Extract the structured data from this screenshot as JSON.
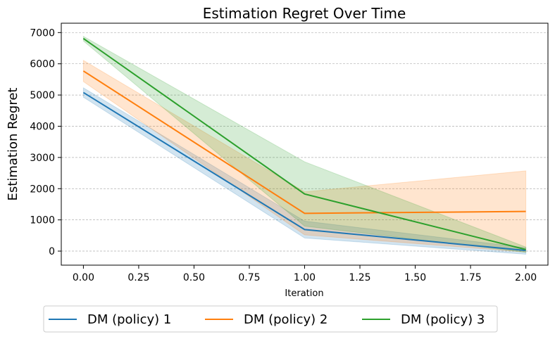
{
  "chart_data": {
    "type": "line",
    "title": "Estimation Regret Over Time",
    "xlabel": "Iteration",
    "ylabel": "Estimation Regret",
    "x": [
      0,
      1,
      2
    ],
    "xlim": [
      -0.1,
      2.1
    ],
    "ylim": [
      -450,
      7300
    ],
    "xticks": [
      0.0,
      0.25,
      0.5,
      0.75,
      1.0,
      1.25,
      1.5,
      1.75,
      2.0
    ],
    "xtick_labels": [
      "0.00",
      "0.25",
      "0.50",
      "0.75",
      "1.00",
      "1.25",
      "1.50",
      "1.75",
      "2.00"
    ],
    "yticks": [
      0,
      1000,
      2000,
      3000,
      4000,
      5000,
      6000,
      7000
    ],
    "ytick_labels": [
      "0",
      "1000",
      "2000",
      "3000",
      "4000",
      "5000",
      "6000",
      "7000"
    ],
    "grid": "y-dashed",
    "legend_position": "bottom-center",
    "series": [
      {
        "name": "DM (policy) 1",
        "color": "#1f77b4",
        "values": [
          5080,
          690,
          20
        ],
        "lower": [
          4930,
          420,
          -100
        ],
        "upper": [
          5230,
          960,
          110
        ]
      },
      {
        "name": "DM (policy) 2",
        "color": "#ff7f0e",
        "values": [
          5770,
          1210,
          1270
        ],
        "lower": [
          5430,
          520,
          -30
        ],
        "upper": [
          6110,
          1900,
          2570
        ]
      },
      {
        "name": "DM (policy) 3",
        "color": "#2ca02c",
        "values": [
          6810,
          1830,
          50
        ],
        "lower": [
          6730,
          800,
          -40
        ],
        "upper": [
          6880,
          2860,
          130
        ]
      }
    ]
  }
}
